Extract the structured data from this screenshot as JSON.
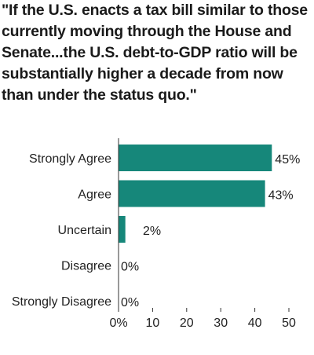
{
  "title": "\"If the U.S. enacts a tax bill similar to those currently moving through the House and Senate...the U.S. debt-to-GDP ratio will be substantially higher a decade from now than under the status quo.\"",
  "chart_data": {
    "type": "bar",
    "orientation": "horizontal",
    "title": "\"If the U.S. enacts a tax bill similar to those currently moving through the House and Senate...the U.S. debt-to-GDP ratio will be substantially higher a decade from now than under the status quo.\"",
    "categories": [
      "Strongly Agree",
      "Agree",
      "Uncertain",
      "Disagree",
      "Strongly Disagree"
    ],
    "values": [
      45,
      43,
      2,
      0,
      0
    ],
    "value_labels": [
      "45%",
      "43%",
      "2%",
      "0%",
      "0%"
    ],
    "xlim": [
      0,
      50
    ],
    "xticks": [
      0,
      10,
      20,
      30,
      40,
      50
    ],
    "xtick_labels": [
      "0%",
      "10",
      "20",
      "30",
      "40",
      "50"
    ],
    "bar_color": "#16877a",
    "grid": false,
    "legend": "none"
  }
}
